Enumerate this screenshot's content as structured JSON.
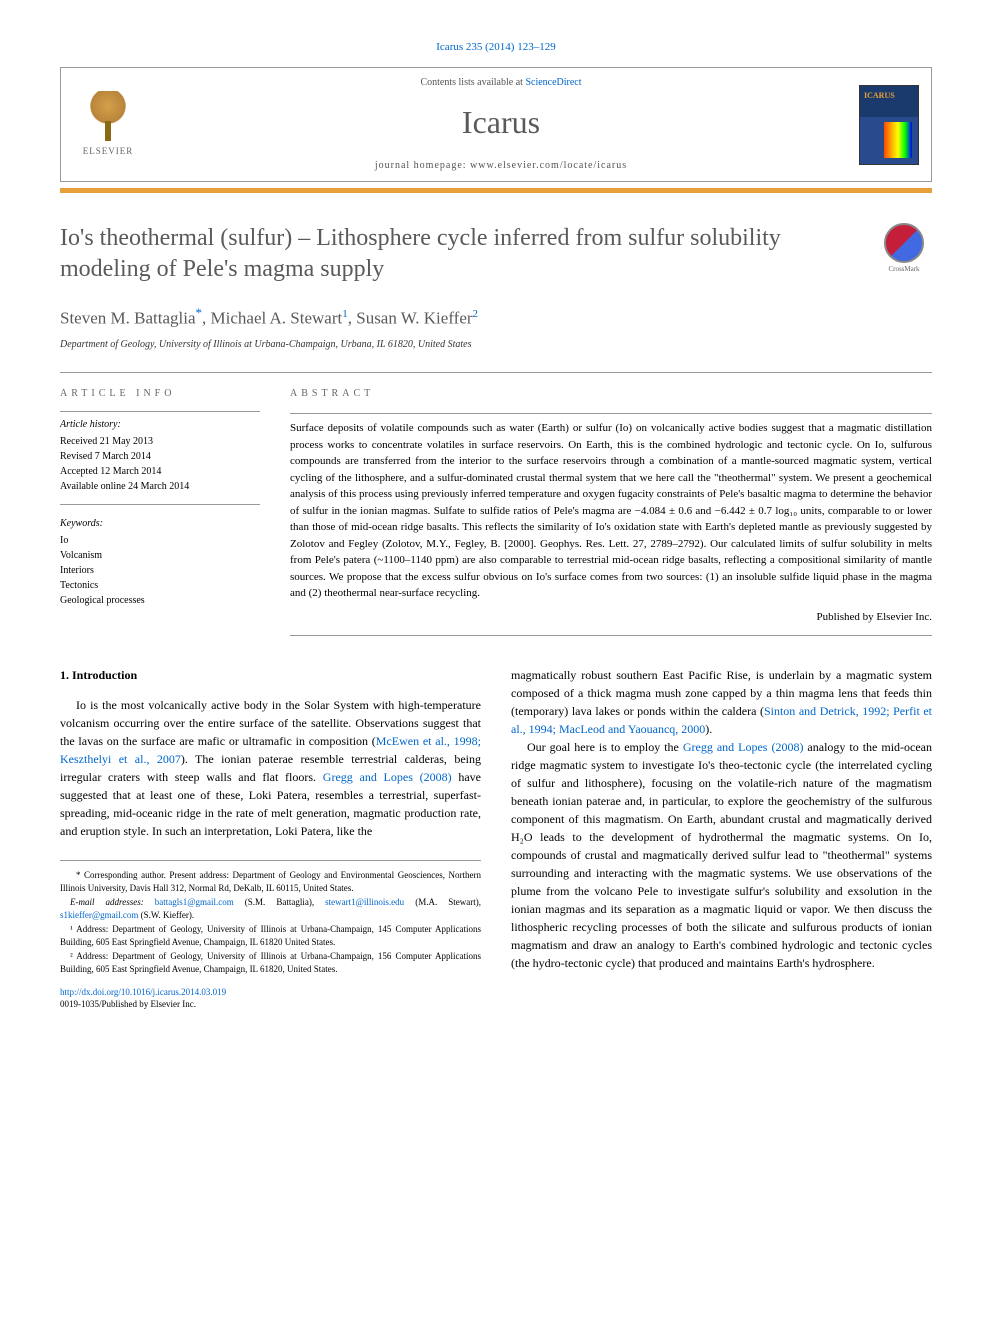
{
  "citation": "Icarus 235 (2014) 123–129",
  "header": {
    "contents_prefix": "Contents lists available at ",
    "contents_link": "ScienceDirect",
    "journal": "Icarus",
    "homepage_prefix": "journal homepage: ",
    "homepage": "www.elsevier.com/locate/icarus",
    "publisher_logo_text": "ELSEVIER",
    "cover_title": "ICARUS"
  },
  "crossmark_label": "CrossMark",
  "title": "Io's theothermal (sulfur) – Lithosphere cycle inferred from sulfur solubility modeling of Pele's magma supply",
  "authors": [
    {
      "name": "Steven M. Battaglia",
      "marker": "*"
    },
    {
      "name": "Michael A. Stewart",
      "marker": "1"
    },
    {
      "name": "Susan W. Kieffer",
      "marker": "2"
    }
  ],
  "affiliation": "Department of Geology, University of Illinois at Urbana-Champaign, Urbana, IL 61820, United States",
  "article_info": {
    "heading": "ARTICLE INFO",
    "history_label": "Article history:",
    "history": [
      "Received 21 May 2013",
      "Revised 7 March 2014",
      "Accepted 12 March 2014",
      "Available online 24 March 2014"
    ],
    "keywords_label": "Keywords:",
    "keywords": [
      "Io",
      "Volcanism",
      "Interiors",
      "Tectonics",
      "Geological processes"
    ]
  },
  "abstract": {
    "heading": "ABSTRACT",
    "text": "Surface deposits of volatile compounds such as water (Earth) or sulfur (Io) on volcanically active bodies suggest that a magmatic distillation process works to concentrate volatiles in surface reservoirs. On Earth, this is the combined hydrologic and tectonic cycle. On Io, sulfurous compounds are transferred from the interior to the surface reservoirs through a combination of a mantle-sourced magmatic system, vertical cycling of the lithosphere, and a sulfur-dominated crustal thermal system that we here call the \"theothermal\" system. We present a geochemical analysis of this process using previously inferred temperature and oxygen fugacity constraints of Pele's basaltic magma to determine the behavior of sulfur in the ionian magmas. Sulfate to sulfide ratios of Pele's magma are −4.084 ± 0.6 and −6.442 ± 0.7 log₁₀ units, comparable to or lower than those of mid-ocean ridge basalts. This reflects the similarity of Io's oxidation state with Earth's depleted mantle as previously suggested by Zolotov and Fegley (Zolotov, M.Y., Fegley, B. [2000]. Geophys. Res. Lett. 27, 2789–2792). Our calculated limits of sulfur solubility in melts from Pele's patera (~1100–1140 ppm) are also comparable to terrestrial mid-ocean ridge basalts, reflecting a compositional similarity of mantle sources. We propose that the excess sulfur obvious on Io's surface comes from two sources: (1) an insoluble sulfide liquid phase in the magma and (2) theothermal near-surface recycling.",
    "publisher": "Published by Elsevier Inc."
  },
  "body": {
    "section_number": "1.",
    "section_title": "Introduction",
    "col1_p1_a": "Io is the most volcanically active body in the Solar System with high-temperature volcanism occurring over the entire surface of the satellite. Observations suggest that the lavas on the surface are mafic or ultramafic in composition (",
    "col1_cite1": "McEwen et al., 1998; Keszthelyi et al., 2007",
    "col1_p1_b": "). The ionian paterae resemble terrestrial calderas, being irregular craters with steep walls and flat floors. ",
    "col1_cite2": "Gregg and Lopes (2008)",
    "col1_p1_c": " have suggested that at least one of these, Loki Patera, resembles a terrestrial, superfast-spreading, mid-oceanic ridge in the rate of melt generation, magmatic production rate, and eruption style. In such an interpretation, Loki Patera, like the",
    "col2_p1_a": "magmatically robust southern East Pacific Rise, is underlain by a magmatic system composed of a thick magma mush zone capped by a thin magma lens that feeds thin (temporary) lava lakes or ponds within the caldera (",
    "col2_cite1": "Sinton and Detrick, 1992; Perfit et al., 1994; MacLeod and Yaouancq, 2000",
    "col2_p1_b": ").",
    "col2_p2_a": "Our goal here is to employ the ",
    "col2_cite2": "Gregg and Lopes (2008)",
    "col2_p2_b": " analogy to the mid-ocean ridge magmatic system to investigate Io's theo-tectonic cycle (the interrelated cycling of sulfur and lithosphere), focusing on the volatile-rich nature of the magmatism beneath ionian paterae and, in particular, to explore the geochemistry of the sulfurous component of this magmatism. On Earth, abundant crustal and magmatically derived H₂O leads to the development of hydrothermal the magmatic systems. On Io, compounds of crustal and magmatically derived sulfur lead to \"theothermal\" systems surrounding and interacting with the magmatic systems. We use observations of the plume from the volcano Pele to investigate sulfur's solubility and exsolution in the ionian magmas and its separation as a magmatic liquid or vapor. We then discuss the lithospheric recycling processes of both the silicate and sulfurous products of ionian magmatism and draw an analogy to Earth's combined hydrologic and tectonic cycles (the hydro-tectonic cycle) that produced and maintains Earth's hydrosphere."
  },
  "footnotes": {
    "corresponding": "* Corresponding author. Present address: Department of Geology and Environmental Geosciences, Northern Illinois University, Davis Hall 312, Normal Rd, DeKalb, IL 60115, United States.",
    "email_label": "E-mail addresses: ",
    "emails": [
      {
        "addr": "battagls1@gmail.com",
        "who": " (S.M. Battaglia), "
      },
      {
        "addr": "stewart1@illinois.edu",
        "who": " (M.A. Stewart), "
      },
      {
        "addr": "s1kieffer@gmail.com",
        "who": " (S.W. Kieffer)."
      }
    ],
    "note1": "¹ Address: Department of Geology, University of Illinois at Urbana-Champaign, 145 Computer Applications Building, 605 East Springfield Avenue, Champaign, IL 61820 United States.",
    "note2": "² Address: Department of Geology, University of Illinois at Urbana-Champaign, 156 Computer Applications Building, 605 East Springfield Avenue, Champaign, IL 61820, United States."
  },
  "doi": {
    "url": "http://dx.doi.org/10.1016/j.icarus.2014.03.019",
    "issn_line": "0019-1035/Published by Elsevier Inc."
  }
}
